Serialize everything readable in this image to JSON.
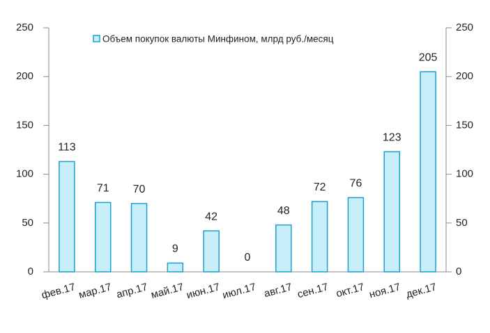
{
  "chart_data": {
    "type": "bar",
    "categories": [
      "фев.17",
      "мар.17",
      "апр.17",
      "май.17",
      "июн.17",
      "июл.17",
      "авг.17",
      "сен.17",
      "окт.17",
      "ноя.17",
      "дек.17"
    ],
    "series": [
      {
        "name": "Объем покупок валюты Минфином, млрд руб./месяц",
        "color": "#c8eefa",
        "values": [
          113,
          71,
          70,
          9,
          42,
          0,
          48,
          72,
          76,
          123,
          205
        ]
      }
    ],
    "ylim": [
      0,
      250
    ],
    "yticks": [
      0,
      50,
      100,
      150,
      200,
      250
    ],
    "y2lim": [
      0,
      250
    ],
    "y2ticks": [
      0,
      50,
      100,
      150,
      200,
      250
    ],
    "legend": "top"
  }
}
